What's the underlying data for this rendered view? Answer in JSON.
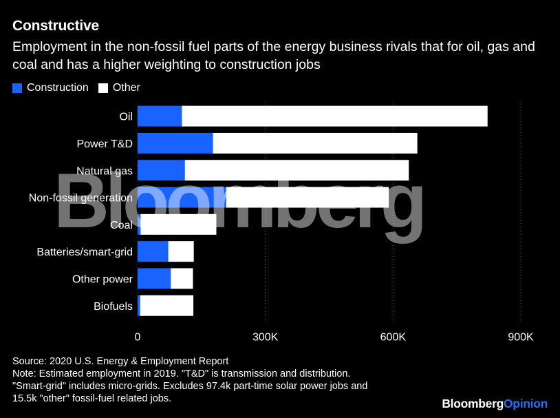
{
  "title": "Constructive",
  "subtitle": "Employment in the non-fossil fuel parts of the energy business rivals that for oil, gas and coal and has a higher weighting to construction jobs",
  "legend": [
    {
      "label": "Construction",
      "color": "#1a63ff"
    },
    {
      "label": "Other",
      "color": "#ffffff"
    }
  ],
  "footer": {
    "source": "Source: 2020 U.S. Energy & Employment Report",
    "note1": "Note: Estimated employment in 2019. \"T&D\" is transmission and distribution.",
    "note2": "\"Smart-grid\" includes micro-grids. Excludes 97.4k part-time solar power jobs and",
    "note3": "15.5k \"other\" fossil-fuel related jobs."
  },
  "brand": {
    "main": "Bloomberg",
    "accent": "Opinion"
  },
  "watermark": "Bloomberg",
  "chart_data": {
    "type": "bar",
    "orientation": "horizontal",
    "stacked": true,
    "categories": [
      "Oil",
      "Power T&D",
      "Natural gas",
      "Non-fossil generation",
      "Coal",
      "Batteries/smart-grid",
      "Other power",
      "Biofuels"
    ],
    "series": [
      {
        "name": "Construction",
        "color": "#1a63ff",
        "values": [
          104000,
          177000,
          111000,
          208000,
          7000,
          72000,
          78000,
          6000
        ]
      },
      {
        "name": "Other",
        "color": "#ffffff",
        "values": [
          718000,
          480000,
          526000,
          382000,
          178000,
          60000,
          52000,
          125000
        ]
      }
    ],
    "xlim": [
      0,
      900000
    ],
    "xticks": [
      0,
      300000,
      600000,
      900000
    ],
    "xtick_labels": [
      "0",
      "300K",
      "600K",
      "900K"
    ],
    "grid": "vertical",
    "legend": "top-left"
  }
}
